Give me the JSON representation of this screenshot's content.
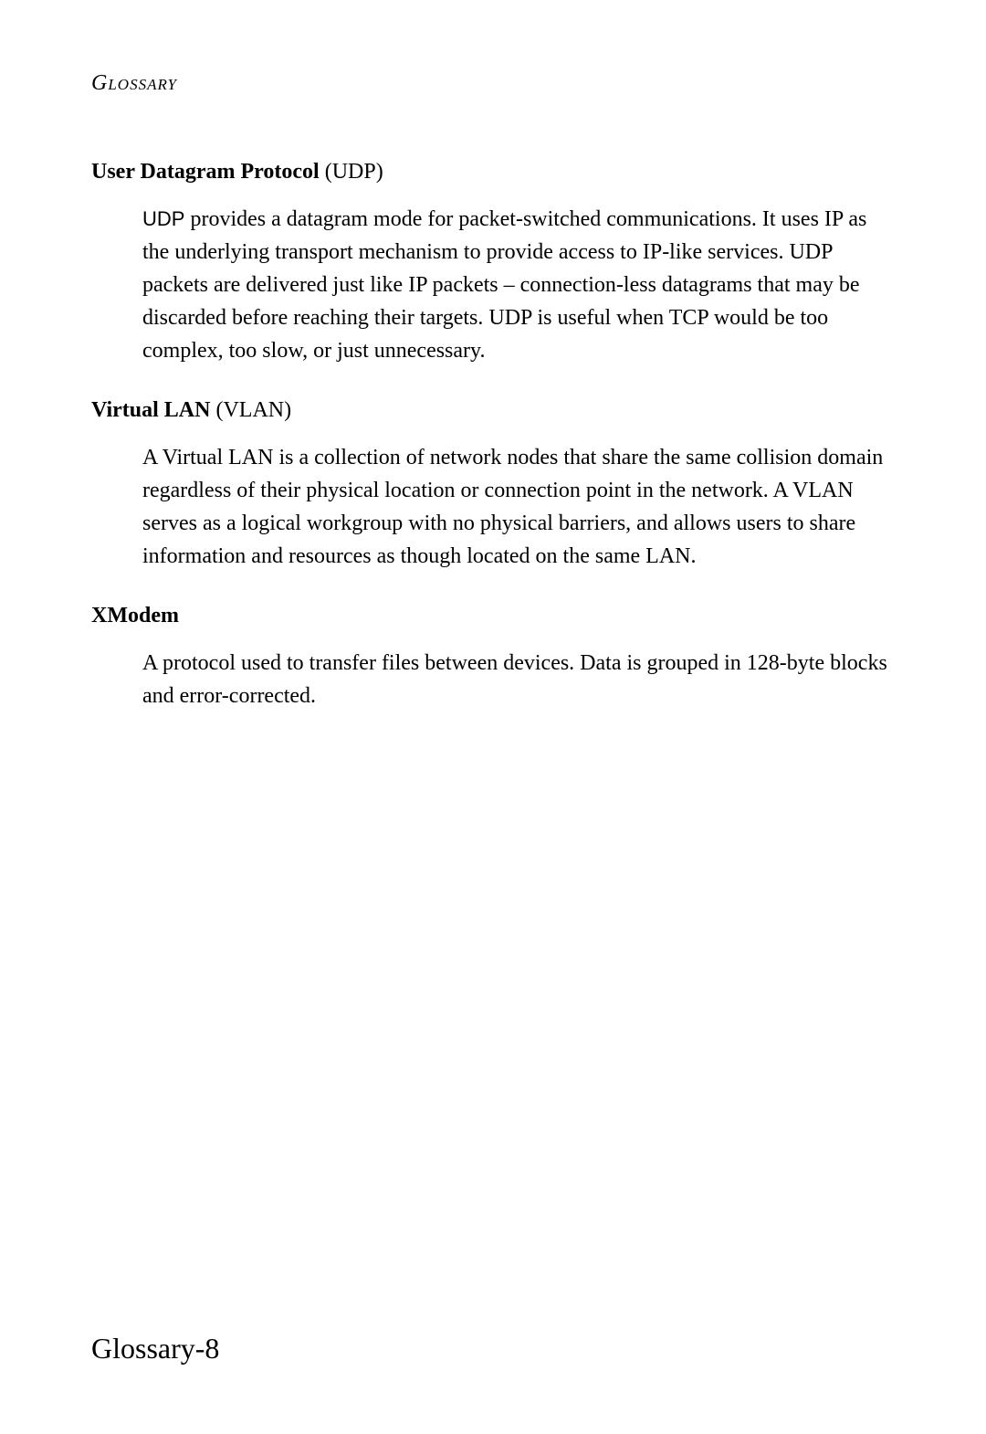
{
  "header": {
    "title": "Glossary"
  },
  "entries": [
    {
      "term_bold": "User Datagram Protocol",
      "term_abbrev": " (UDP)",
      "def_leading_sans": "UDP",
      "def_rest": " provides a datagram mode for packet-switched communications. It uses IP as the underlying transport mechanism to provide access to IP-like services. UDP packets are delivered just like IP packets – connection-less datagrams that may be discarded before reaching their targets. UDP is useful when TCP would be too complex, too slow, or just unnecessary."
    },
    {
      "term_bold": "Virtual LAN",
      "term_abbrev": " (VLAN)",
      "def_leading_sans": "",
      "def_rest": "A Virtual LAN is a collection of network nodes that share the same collision domain regardless of their physical location or connection point in the network. A VLAN serves as a logical workgroup with no physical barriers, and allows users to share information and resources as though located on the same LAN."
    },
    {
      "term_bold": "XModem",
      "term_abbrev": "",
      "def_leading_sans": "",
      "def_rest": "A protocol used to transfer files between devices. Data is grouped in 128-byte blocks and error-corrected."
    }
  ],
  "footer": {
    "page_label": "Glossary-8"
  }
}
